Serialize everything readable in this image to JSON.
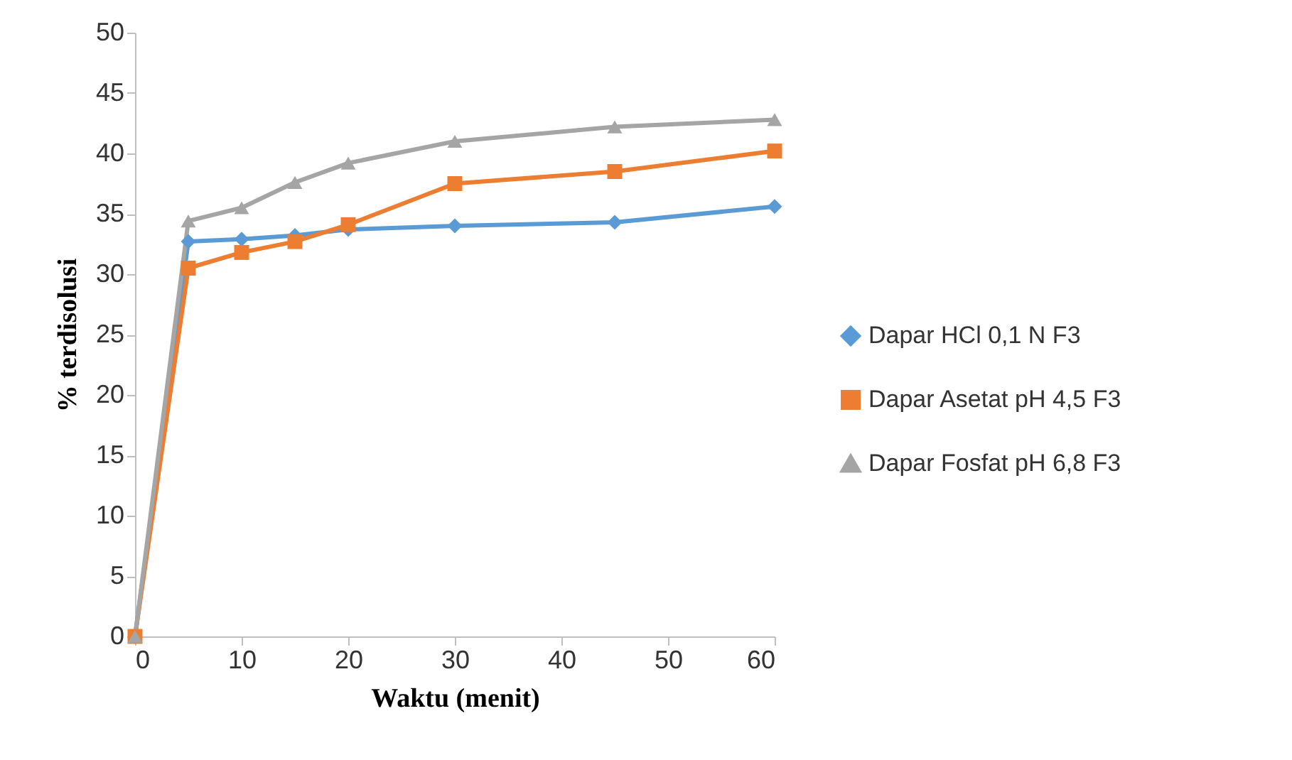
{
  "chart_data": {
    "type": "line",
    "xlabel": "Waktu (menit)",
    "ylabel": "% terdisolusi",
    "x": [
      0,
      5,
      10,
      15,
      20,
      30,
      45,
      60
    ],
    "series": [
      {
        "name": "Dapar HCl 0,1 N F3",
        "color": "#5b9bd5",
        "marker": "diamond",
        "values": [
          0,
          32.7,
          32.9,
          33.2,
          33.7,
          34.0,
          34.3,
          35.6
        ]
      },
      {
        "name": "Dapar Asetat pH 4,5 F3",
        "color": "#ed7d31",
        "marker": "square",
        "values": [
          0,
          30.5,
          31.8,
          32.7,
          34.1,
          37.5,
          38.5,
          40.2
        ]
      },
      {
        "name": "Dapar Fosfat pH 6,8 F3",
        "color": "#a5a5a5",
        "marker": "triangle",
        "values": [
          0,
          34.4,
          35.5,
          37.6,
          39.2,
          41.0,
          42.2,
          42.8
        ]
      }
    ],
    "xlim": [
      0,
      60
    ],
    "xticks": [
      0,
      10,
      20,
      30,
      40,
      50,
      60
    ],
    "ylim": [
      0,
      50
    ],
    "yticks": [
      0,
      5,
      10,
      15,
      20,
      25,
      30,
      35,
      40,
      45,
      50
    ],
    "grid": false,
    "legend": "right"
  }
}
